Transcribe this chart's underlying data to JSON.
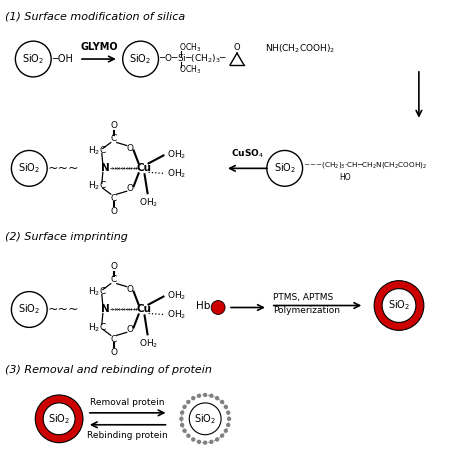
{
  "bg_color": "#ffffff",
  "section1": "(1) Surface modification of silica",
  "section2": "(2) Surface imprinting",
  "section3": "(3) Removal and rebinding of protein",
  "red_color": "#cc0000",
  "gray_color": "#aaaaaa",
  "dot_color": "#bbbbbb"
}
